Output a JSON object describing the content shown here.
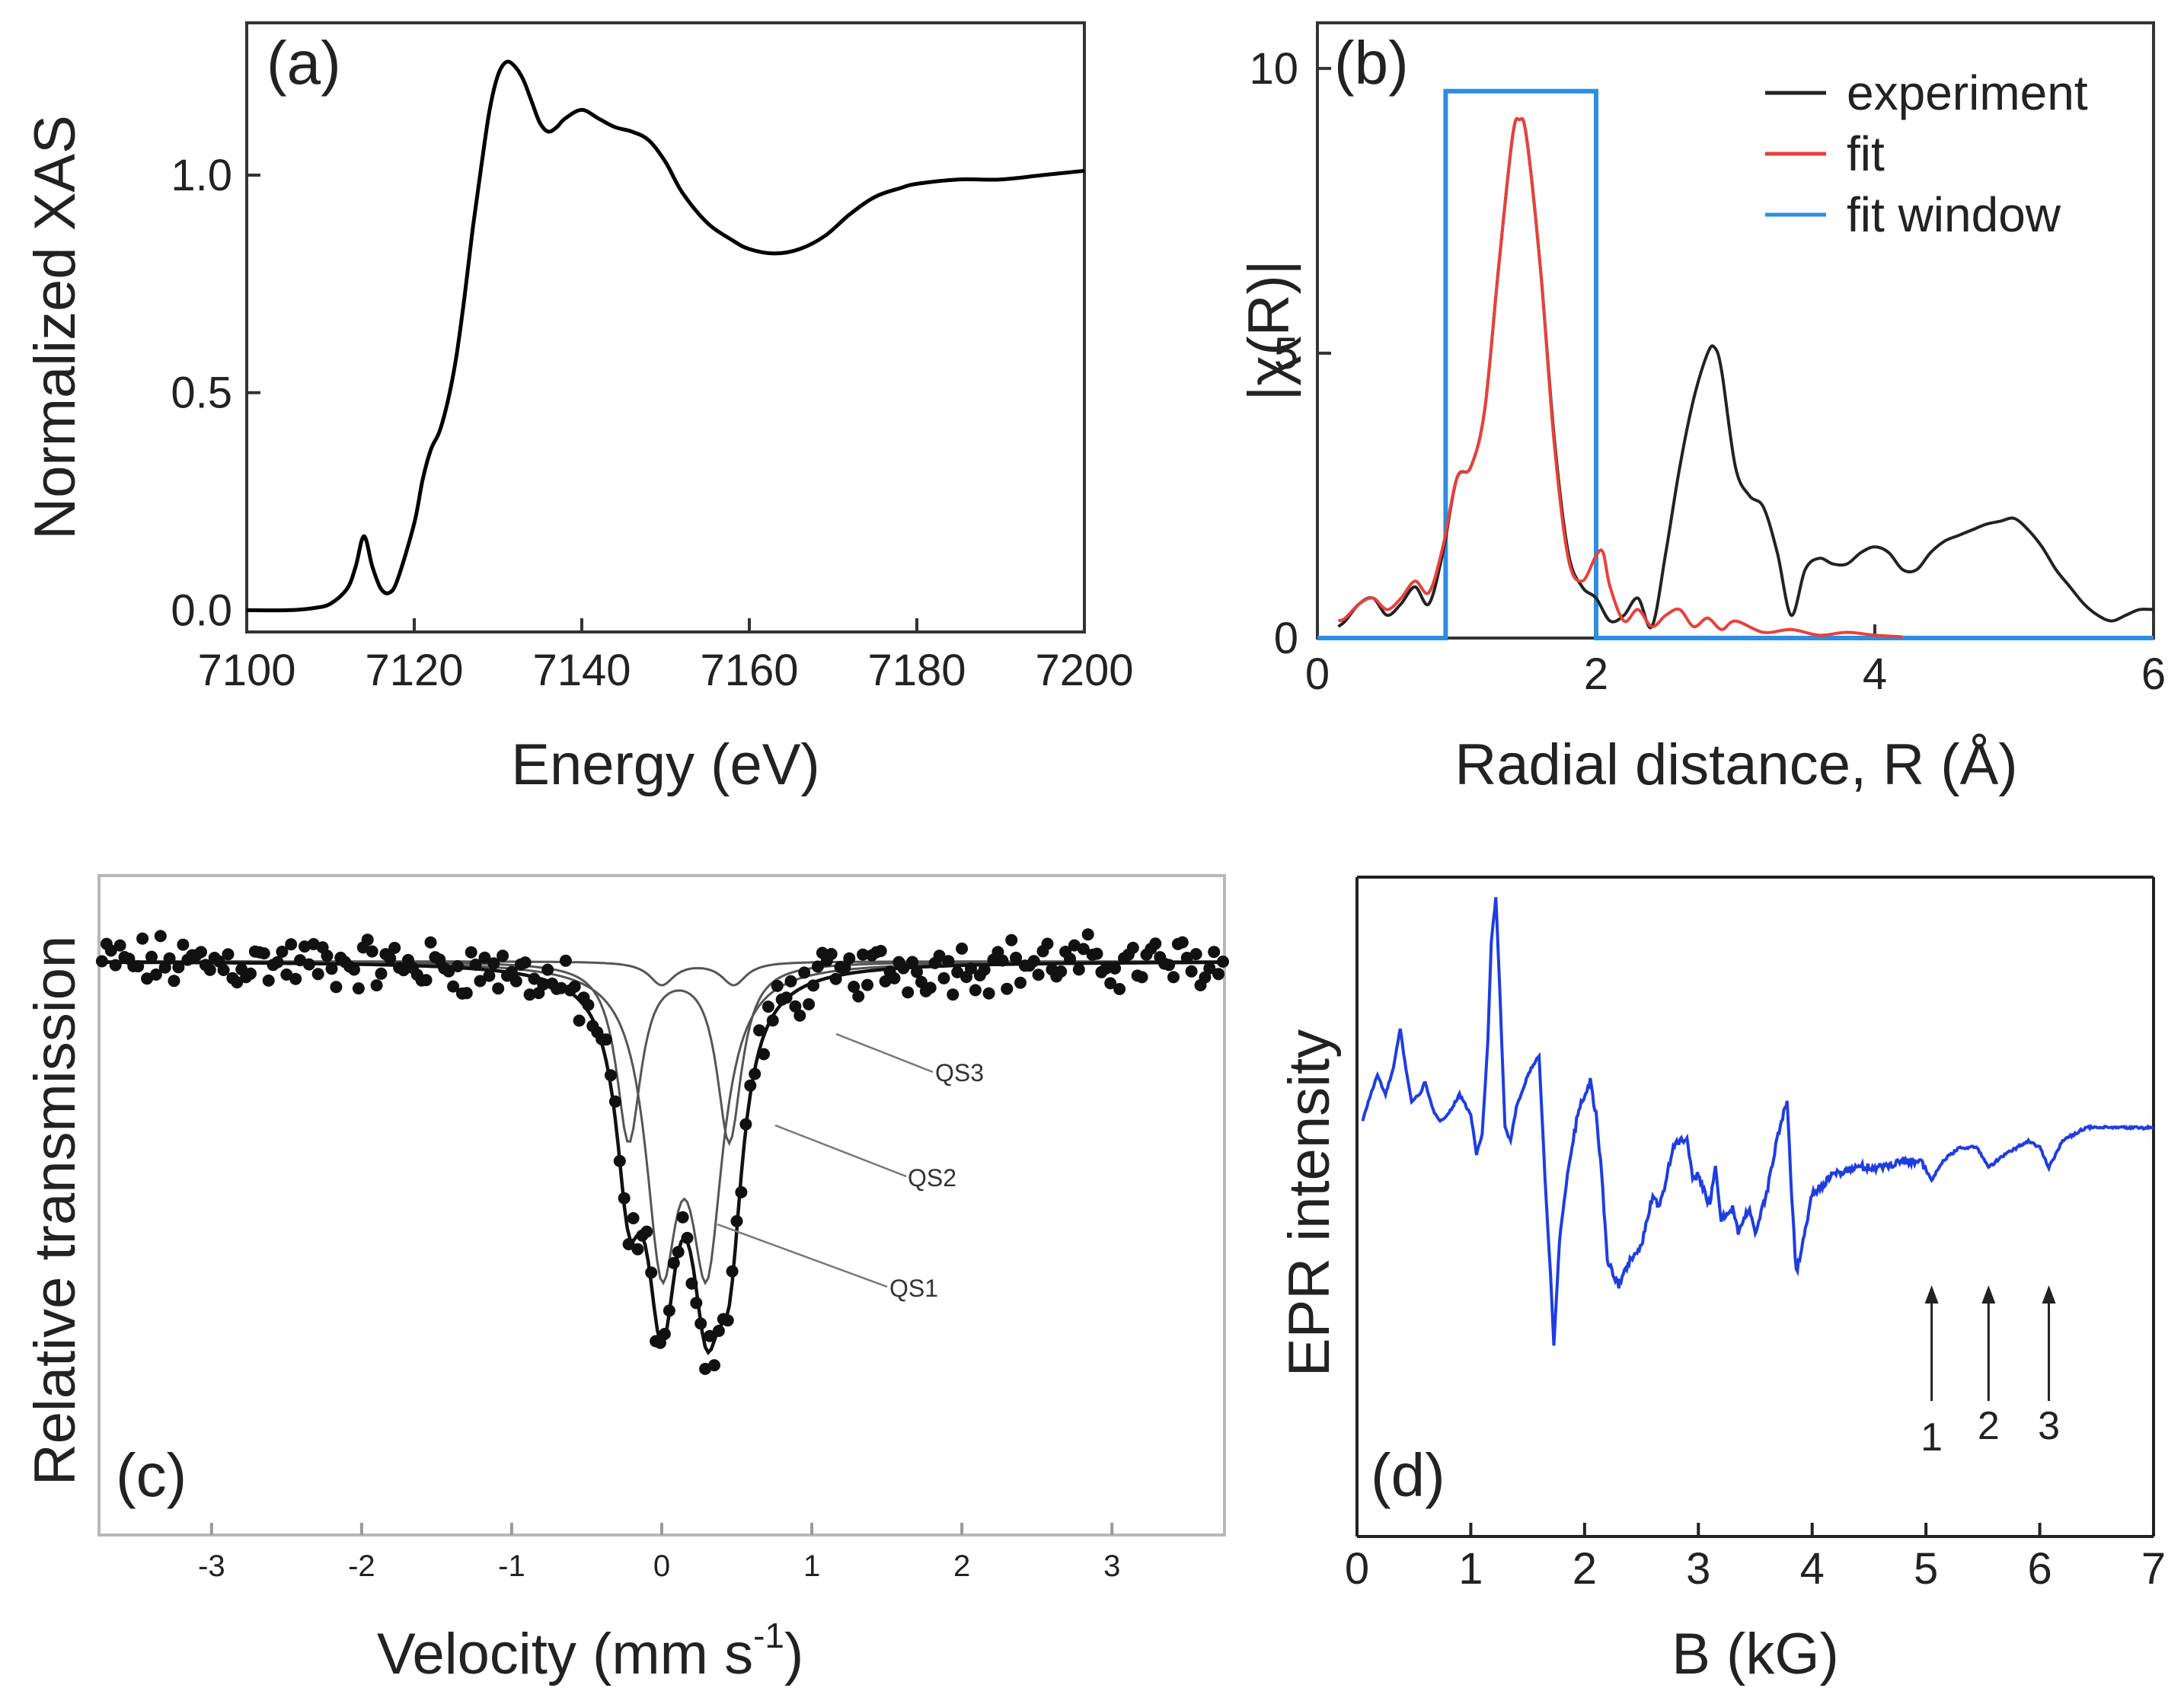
{
  "chart_data": [
    {
      "id": "a",
      "type": "line",
      "panel_label": "(a)",
      "xlabel": "Energy (eV)",
      "ylabel": "Normalized  XAS",
      "xlim": [
        7100,
        7200
      ],
      "ylim": [
        -0.05,
        1.35
      ],
      "xticks": [
        "7100",
        "7120",
        "7140",
        "7160",
        "7180",
        "7200"
      ],
      "yticks": [
        "0.0",
        "0.5",
        "1.0"
      ],
      "series": [
        {
          "name": "XAS",
          "color": "#000000",
          "x": [
            7100,
            7105,
            7108,
            7110,
            7112,
            7113,
            7114,
            7115,
            7116,
            7117,
            7118,
            7120,
            7121,
            7122,
            7123,
            7124,
            7125,
            7126,
            7127,
            7128,
            7129,
            7130,
            7131,
            7132,
            7133,
            7134,
            7135,
            7136,
            7137,
            7138,
            7140,
            7142,
            7144,
            7146,
            7148,
            7150,
            7152,
            7155,
            7158,
            7160,
            7163,
            7166,
            7169,
            7172,
            7175,
            7178,
            7180,
            7185,
            7190,
            7195,
            7200
          ],
          "y": [
            0.0,
            0.0,
            0.005,
            0.015,
            0.05,
            0.1,
            0.17,
            0.1,
            0.05,
            0.04,
            0.07,
            0.2,
            0.3,
            0.37,
            0.41,
            0.48,
            0.58,
            0.72,
            0.88,
            1.02,
            1.15,
            1.23,
            1.26,
            1.25,
            1.22,
            1.17,
            1.12,
            1.1,
            1.11,
            1.13,
            1.15,
            1.13,
            1.11,
            1.1,
            1.08,
            1.03,
            0.96,
            0.89,
            0.85,
            0.83,
            0.82,
            0.83,
            0.86,
            0.91,
            0.95,
            0.97,
            0.98,
            0.99,
            0.99,
            1.0,
            1.01
          ]
        }
      ]
    },
    {
      "id": "b",
      "type": "line",
      "panel_label": "(b)",
      "xlabel": "Radial distance, R (Å)",
      "ylabel": "|χ(R)|",
      "xlim": [
        0,
        6
      ],
      "ylim": [
        0,
        10.8
      ],
      "xticks": [
        "0",
        "2",
        "4",
        "6"
      ],
      "yticks": [
        "0",
        "5",
        "10"
      ],
      "legend": [
        "experiment",
        "fit",
        "fit window"
      ],
      "legend_position": "top-right",
      "series": [
        {
          "name": "experiment",
          "color": "#222222",
          "x": [
            0.15,
            0.2,
            0.3,
            0.4,
            0.5,
            0.6,
            0.7,
            0.8,
            0.9,
            1.0,
            1.1,
            1.2,
            1.3,
            1.4,
            1.45,
            1.5,
            1.6,
            1.7,
            1.8,
            1.9,
            2.0,
            2.1,
            2.2,
            2.3,
            2.4,
            2.5,
            2.6,
            2.7,
            2.8,
            2.85,
            2.9,
            3.0,
            3.1,
            3.2,
            3.3,
            3.4,
            3.5,
            3.6,
            3.7,
            3.8,
            3.9,
            4.0,
            4.1,
            4.2,
            4.3,
            4.4,
            4.5,
            4.6,
            4.7,
            4.8,
            4.9,
            5.0,
            5.1,
            5.2,
            5.3,
            5.4,
            5.5,
            5.6,
            5.7,
            5.8,
            5.9,
            6.0
          ],
          "y": [
            0.2,
            0.3,
            0.6,
            0.7,
            0.4,
            0.6,
            0.9,
            0.6,
            1.5,
            2.8,
            3.0,
            4.0,
            6.5,
            8.8,
            9.1,
            8.8,
            6.5,
            3.5,
            1.5,
            0.9,
            0.7,
            0.3,
            0.4,
            0.7,
            0.2,
            1.5,
            3.0,
            4.2,
            5.0,
            5.1,
            4.7,
            3.0,
            2.5,
            2.3,
            1.5,
            0.4,
            1.2,
            1.4,
            1.3,
            1.3,
            1.5,
            1.6,
            1.5,
            1.2,
            1.2,
            1.5,
            1.7,
            1.8,
            1.9,
            2.0,
            2.05,
            2.1,
            1.9,
            1.6,
            1.2,
            0.9,
            0.6,
            0.4,
            0.3,
            0.4,
            0.5,
            0.5
          ]
        },
        {
          "name": "fit",
          "color": "#e8413c",
          "x": [
            0.15,
            0.2,
            0.3,
            0.4,
            0.5,
            0.6,
            0.7,
            0.8,
            0.9,
            1.0,
            1.1,
            1.2,
            1.3,
            1.4,
            1.45,
            1.5,
            1.6,
            1.7,
            1.8,
            1.9,
            2.0,
            2.05,
            2.1,
            2.2,
            2.3,
            2.4,
            2.5,
            2.6,
            2.7,
            2.8,
            2.9,
            3.0,
            3.2,
            3.4,
            3.6,
            3.8,
            4.0,
            4.2
          ],
          "y": [
            0.3,
            0.35,
            0.6,
            0.7,
            0.5,
            0.7,
            1.0,
            0.8,
            1.6,
            2.8,
            3.0,
            4.0,
            6.5,
            8.8,
            9.1,
            8.8,
            6.5,
            3.4,
            1.4,
            1.0,
            1.45,
            1.5,
            0.9,
            0.3,
            0.5,
            0.2,
            0.4,
            0.5,
            0.2,
            0.35,
            0.15,
            0.3,
            0.1,
            0.15,
            0.05,
            0.1,
            0.05,
            0.02
          ]
        },
        {
          "name": "fit window",
          "color": "#2d8de0",
          "x": [
            0.0,
            0.92,
            0.92,
            2.0,
            2.0,
            6.0
          ],
          "y": [
            0.0,
            0.0,
            9.6,
            9.6,
            0.0,
            0.0
          ]
        }
      ]
    },
    {
      "id": "c",
      "type": "scatter",
      "panel_label": "(c)",
      "xlabel": "Velocity (mm s",
      "xlabel_sup": "-1",
      "xlabel_close": ")",
      "ylabel": "Relative transmission",
      "xlim": [
        -3.75,
        3.75
      ],
      "ylim": [
        0,
        1
      ],
      "xticks": [
        "-3",
        "-2",
        "-1",
        "0",
        "1",
        "2",
        "3"
      ],
      "annotations": [
        "QS3",
        "QS2",
        "QS1"
      ],
      "baseline": 0.87,
      "components": [
        {
          "name": "QS1",
          "doublet": [
            0.0,
            0.3
          ],
          "depth": 0.42,
          "width": 0.26
        },
        {
          "name": "QS2",
          "doublet": [
            -0.22,
            0.45
          ],
          "depth": 0.27,
          "width": 0.2
        },
        {
          "name": "QS3",
          "doublet": [
            0.0,
            0.48
          ],
          "depth": 0.035,
          "width": 0.2
        }
      ]
    },
    {
      "id": "d",
      "type": "line",
      "panel_label": "(d)",
      "xlabel": "B (kG)",
      "ylabel": "EPR intensity",
      "xlim": [
        0,
        7
      ],
      "ylim": [
        0,
        1
      ],
      "xticks": [
        "0",
        "1",
        "2",
        "3",
        "4",
        "5",
        "6",
        "7"
      ],
      "markers": [
        {
          "label": "1",
          "x": 5.05
        },
        {
          "label": "2",
          "x": 5.55
        },
        {
          "label": "3",
          "x": 6.08
        }
      ],
      "series": [
        {
          "name": "EPR",
          "color": "#1f3de0",
          "x": [
            0.05,
            0.1,
            0.18,
            0.25,
            0.32,
            0.38,
            0.42,
            0.48,
            0.55,
            0.6,
            0.66,
            0.72,
            0.8,
            0.9,
            1.0,
            1.05,
            1.1,
            1.15,
            1.18,
            1.22,
            1.25,
            1.3,
            1.35,
            1.4,
            1.5,
            1.6,
            1.65,
            1.7,
            1.73,
            1.78,
            1.85,
            1.95,
            2.05,
            2.1,
            2.15,
            2.2,
            2.3,
            2.4,
            2.5,
            2.6,
            2.65,
            2.7,
            2.75,
            2.8,
            2.9,
            2.95,
            3.0,
            3.1,
            3.15,
            3.2,
            3.3,
            3.35,
            3.45,
            3.5,
            3.6,
            3.7,
            3.78,
            3.82,
            3.86,
            3.9,
            4.0,
            4.2,
            4.4,
            4.6,
            4.8,
            4.95,
            5.05,
            5.15,
            5.3,
            5.45,
            5.55,
            5.7,
            5.9,
            6.0,
            6.08,
            6.2,
            6.4,
            6.6,
            7.0
          ],
          "y": [
            0.63,
            0.66,
            0.7,
            0.67,
            0.71,
            0.77,
            0.72,
            0.66,
            0.67,
            0.69,
            0.65,
            0.63,
            0.64,
            0.67,
            0.64,
            0.58,
            0.61,
            0.75,
            0.9,
            0.97,
            0.85,
            0.62,
            0.6,
            0.65,
            0.7,
            0.73,
            0.55,
            0.4,
            0.29,
            0.45,
            0.55,
            0.65,
            0.69,
            0.64,
            0.55,
            0.42,
            0.38,
            0.42,
            0.44,
            0.52,
            0.5,
            0.53,
            0.57,
            0.6,
            0.6,
            0.54,
            0.55,
            0.5,
            0.56,
            0.48,
            0.5,
            0.46,
            0.5,
            0.46,
            0.52,
            0.61,
            0.66,
            0.52,
            0.4,
            0.43,
            0.52,
            0.55,
            0.56,
            0.56,
            0.57,
            0.57,
            0.54,
            0.57,
            0.59,
            0.59,
            0.56,
            0.58,
            0.6,
            0.59,
            0.56,
            0.6,
            0.62,
            0.62,
            0.62
          ]
        }
      ]
    }
  ]
}
